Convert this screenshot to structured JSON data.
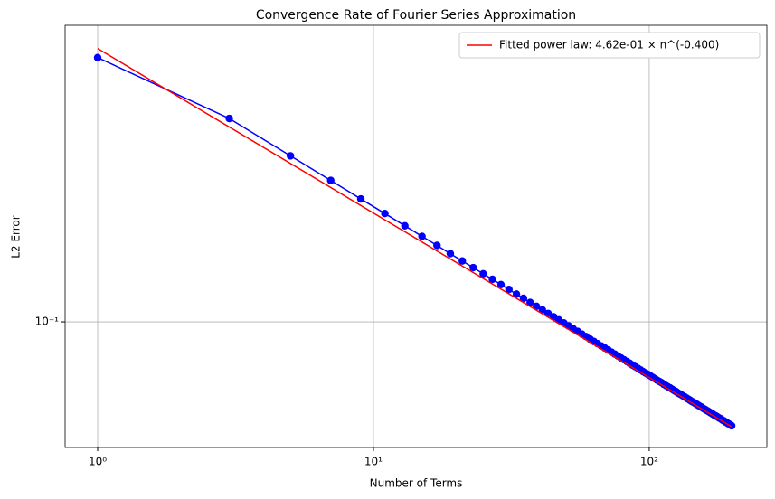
{
  "chart_data": {
    "type": "line",
    "title": "Convergence Rate of Fourier Series Approximation",
    "xlabel": "Number of Terms",
    "ylabel": "L2 Error",
    "xscale": "log",
    "yscale": "log",
    "xlim": [
      0.762,
      267
    ],
    "ylim": [
      0.0495,
      0.526
    ],
    "xticks": [
      {
        "value": 1,
        "label": "10⁰"
      },
      {
        "value": 10,
        "label": "10¹"
      },
      {
        "value": 100,
        "label": "10²"
      }
    ],
    "yticks": [
      {
        "value": 0.1,
        "label": "10⁻¹"
      }
    ],
    "grid": true,
    "legend": "upper right",
    "series": [
      {
        "name": null,
        "color": "#0000ff",
        "marker": true,
        "x": [
          1,
          3,
          5,
          7,
          9,
          11,
          13,
          15,
          17,
          19,
          21,
          23,
          25,
          27,
          29,
          31,
          33,
          35,
          37,
          39,
          41,
          43,
          45,
          47,
          49,
          51,
          53,
          55,
          57,
          59,
          61,
          63,
          65,
          67,
          69,
          71,
          73,
          75,
          77,
          79,
          81,
          83,
          85,
          87,
          89,
          91,
          93,
          95,
          97,
          99,
          101,
          103,
          105,
          107,
          109,
          111,
          113,
          115,
          117,
          119,
          121,
          123,
          125,
          127,
          129,
          131,
          133,
          135,
          137,
          139,
          141,
          143,
          145,
          147,
          149,
          151,
          153,
          155,
          157,
          159,
          161,
          163,
          165,
          167,
          169,
          171,
          173,
          175,
          177,
          179,
          181,
          183,
          185,
          187,
          189,
          191,
          193,
          195,
          197,
          199
        ],
        "values": [
          0.439,
          0.3123,
          0.2533,
          0.2207,
          0.199,
          0.1834,
          0.1712,
          0.1614,
          0.1534,
          0.1465,
          0.1406,
          0.1355,
          0.1309,
          0.1269,
          0.1232,
          0.1199,
          0.1168,
          0.1141,
          0.1115,
          0.1091,
          0.1069,
          0.1048,
          0.1029,
          0.1011,
          0.0994,
          0.0978,
          0.0962,
          0.0948,
          0.0934,
          0.0921,
          0.0908,
          0.0896,
          0.0885,
          0.0874,
          0.0864,
          0.0854,
          0.0844,
          0.0835,
          0.0826,
          0.0817,
          0.0809,
          0.0801,
          0.0793,
          0.0785,
          0.0778,
          0.0771,
          0.0764,
          0.0757,
          0.0751,
          0.0745,
          0.0739,
          0.0733,
          0.0727,
          0.0721,
          0.0716,
          0.0711,
          0.0705,
          0.07,
          0.0695,
          0.0691,
          0.0686,
          0.0681,
          0.0677,
          0.0672,
          0.0668,
          0.0664,
          0.066,
          0.0656,
          0.0652,
          0.0648,
          0.0644,
          0.064,
          0.0637,
          0.0633,
          0.063,
          0.0626,
          0.0623,
          0.062,
          0.0616,
          0.0613,
          0.061,
          0.0607,
          0.0604,
          0.0601,
          0.0598,
          0.0595,
          0.0592,
          0.059,
          0.0587,
          0.0584,
          0.0582,
          0.0579,
          0.0576,
          0.0574,
          0.0571,
          0.0569,
          0.0566,
          0.0564,
          0.0562,
          0.0559
        ]
      },
      {
        "name": "Fitted power law: 4.62e-01 × n^(-0.400)",
        "color": "#ff0000",
        "marker": false,
        "x": [
          1,
          199
        ],
        "values": [
          0.462,
          0.0556
        ]
      }
    ]
  }
}
